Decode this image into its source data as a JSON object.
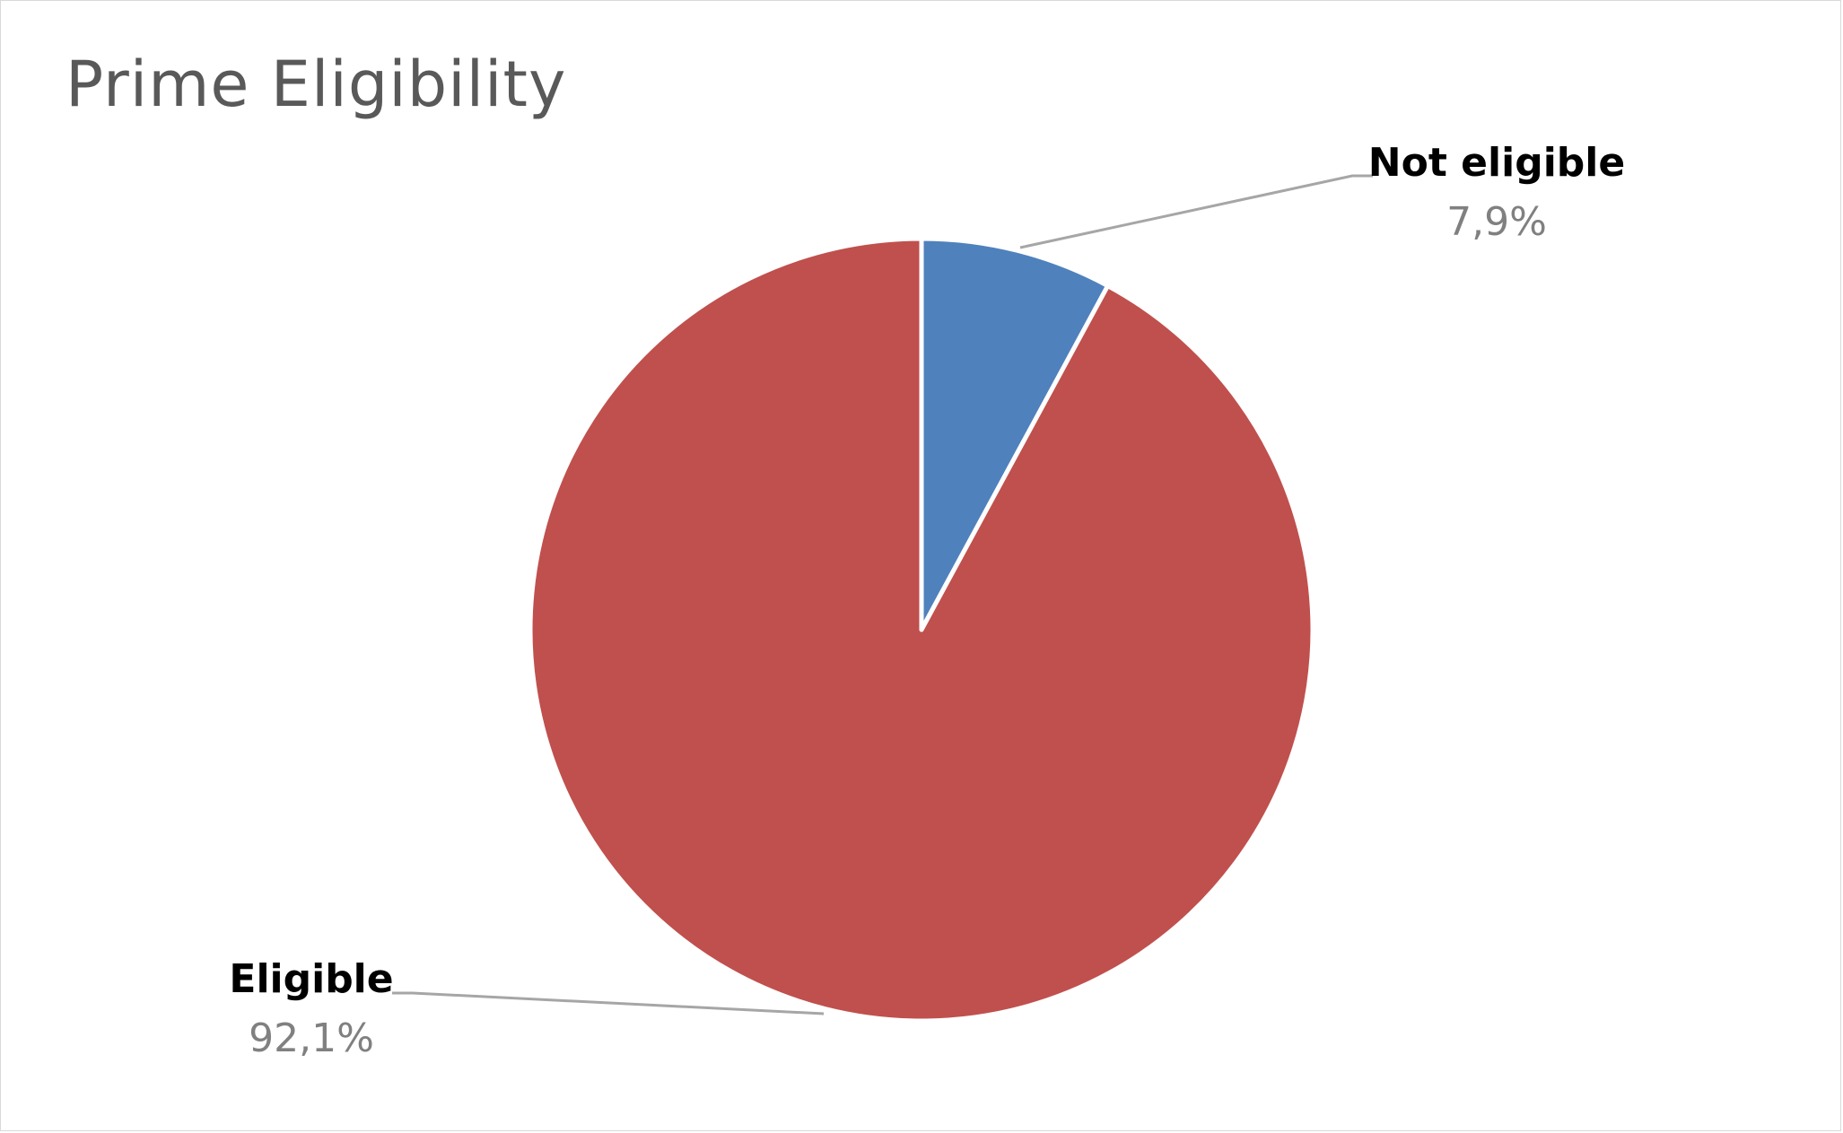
{
  "chart_data": {
    "type": "pie",
    "title": "Prime Eligibility",
    "start_angle_deg": 0,
    "direction": "clockwise",
    "slices": [
      {
        "name": "Not eligible",
        "value": 7.9,
        "label": "7,9%",
        "color": "#4f81bd"
      },
      {
        "name": "Eligible",
        "value": 92.1,
        "label": "92,1%",
        "color": "#c0504d"
      }
    ],
    "slice_border_color": "#ffffff",
    "leader_line_color": "#a6a6a6"
  }
}
